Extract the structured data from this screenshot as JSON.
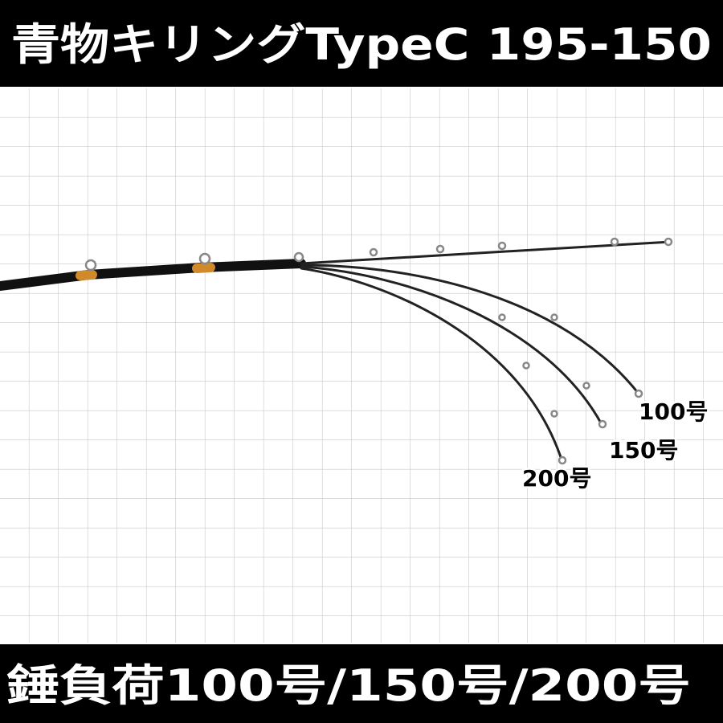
{
  "header": {
    "title": "青物キリングTypeC 195-150"
  },
  "curve_labels": [
    "100号",
    "150号",
    "200号"
  ],
  "footer": {
    "text": "錘負荷100号/150号/200号"
  }
}
